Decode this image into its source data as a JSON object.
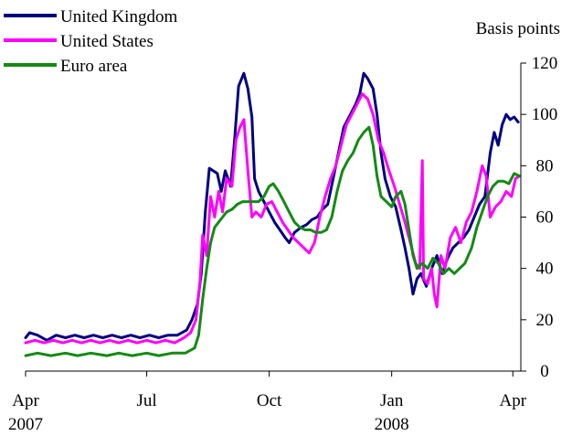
{
  "chart_data": {
    "type": "line",
    "ylabel": "Basis points",
    "ylim": [
      0,
      120
    ],
    "yticks": [
      0,
      20,
      40,
      60,
      80,
      100,
      120
    ],
    "x_range": [
      "2007-04-01",
      "2008-04-07"
    ],
    "x_ticks": [
      {
        "date": "2007-04-01",
        "label": "Apr",
        "year": "2007"
      },
      {
        "date": "2007-07-01",
        "label": "Jul",
        "year": ""
      },
      {
        "date": "2007-10-01",
        "label": "Oct",
        "year": ""
      },
      {
        "date": "2008-01-01",
        "label": "Jan",
        "year": "2008"
      },
      {
        "date": "2008-04-01",
        "label": "Apr",
        "year": ""
      }
    ],
    "grid": false,
    "legend": "top-left",
    "series": [
      {
        "name": "United Kingdom",
        "color": "#000080",
        "points": [
          [
            "2007-04-01",
            13
          ],
          [
            "2007-04-04",
            15
          ],
          [
            "2007-04-10",
            14
          ],
          [
            "2007-04-17",
            12
          ],
          [
            "2007-04-24",
            14
          ],
          [
            "2007-05-01",
            13
          ],
          [
            "2007-05-08",
            14
          ],
          [
            "2007-05-15",
            13
          ],
          [
            "2007-05-22",
            14
          ],
          [
            "2007-05-29",
            13
          ],
          [
            "2007-06-05",
            14
          ],
          [
            "2007-06-12",
            13
          ],
          [
            "2007-06-19",
            14
          ],
          [
            "2007-06-26",
            13
          ],
          [
            "2007-07-03",
            14
          ],
          [
            "2007-07-10",
            13
          ],
          [
            "2007-07-17",
            14
          ],
          [
            "2007-07-24",
            14
          ],
          [
            "2007-07-31",
            16
          ],
          [
            "2007-08-04",
            20
          ],
          [
            "2007-08-08",
            26
          ],
          [
            "2007-08-11",
            38
          ],
          [
            "2007-08-14",
            62
          ],
          [
            "2007-08-17",
            79
          ],
          [
            "2007-08-20",
            78
          ],
          [
            "2007-08-23",
            77
          ],
          [
            "2007-08-26",
            70
          ],
          [
            "2007-08-29",
            78
          ],
          [
            "2007-09-02",
            72
          ],
          [
            "2007-09-05",
            90
          ],
          [
            "2007-09-08",
            111
          ],
          [
            "2007-09-12",
            116
          ],
          [
            "2007-09-15",
            110
          ],
          [
            "2007-09-18",
            99
          ],
          [
            "2007-09-20",
            75
          ],
          [
            "2007-09-23",
            70
          ],
          [
            "2007-09-27",
            66
          ],
          [
            "2007-10-01",
            62
          ],
          [
            "2007-10-05",
            58
          ],
          [
            "2007-10-09",
            55
          ],
          [
            "2007-10-13",
            52
          ],
          [
            "2007-10-16",
            50
          ],
          [
            "2007-10-20",
            54
          ],
          [
            "2007-10-25",
            56
          ],
          [
            "2007-10-29",
            57
          ],
          [
            "2007-11-02",
            59
          ],
          [
            "2007-11-06",
            60
          ],
          [
            "2007-11-10",
            63
          ],
          [
            "2007-11-14",
            65
          ],
          [
            "2007-11-18",
            75
          ],
          [
            "2007-11-22",
            85
          ],
          [
            "2007-11-26",
            95
          ],
          [
            "2007-12-01",
            100
          ],
          [
            "2007-12-05",
            104
          ],
          [
            "2007-12-08",
            108
          ],
          [
            "2007-12-11",
            116
          ],
          [
            "2007-12-14",
            114
          ],
          [
            "2007-12-18",
            110
          ],
          [
            "2007-12-21",
            100
          ],
          [
            "2007-12-24",
            85
          ],
          [
            "2007-12-27",
            75
          ],
          [
            "2007-12-31",
            68
          ],
          [
            "2008-01-04",
            64
          ],
          [
            "2008-01-08",
            55
          ],
          [
            "2008-01-11",
            48
          ],
          [
            "2008-01-14",
            40
          ],
          [
            "2008-01-17",
            30
          ],
          [
            "2008-01-20",
            36
          ],
          [
            "2008-01-23",
            38
          ],
          [
            "2008-01-27",
            33
          ],
          [
            "2008-01-31",
            40
          ],
          [
            "2008-02-04",
            45
          ],
          [
            "2008-02-08",
            38
          ],
          [
            "2008-02-12",
            44
          ],
          [
            "2008-02-16",
            48
          ],
          [
            "2008-02-20",
            50
          ],
          [
            "2008-02-24",
            52
          ],
          [
            "2008-02-28",
            55
          ],
          [
            "2008-03-03",
            60
          ],
          [
            "2008-03-07",
            65
          ],
          [
            "2008-03-11",
            68
          ],
          [
            "2008-03-15",
            85
          ],
          [
            "2008-03-18",
            93
          ],
          [
            "2008-03-21",
            88
          ],
          [
            "2008-03-24",
            96
          ],
          [
            "2008-03-27",
            100
          ],
          [
            "2008-03-30",
            98
          ],
          [
            "2008-04-02",
            99
          ],
          [
            "2008-04-05",
            97
          ]
        ]
      },
      {
        "name": "United States",
        "color": "#ff00ff",
        "points": [
          [
            "2007-04-01",
            11
          ],
          [
            "2007-04-08",
            12
          ],
          [
            "2007-04-15",
            11
          ],
          [
            "2007-04-22",
            12
          ],
          [
            "2007-04-29",
            11
          ],
          [
            "2007-05-06",
            12
          ],
          [
            "2007-05-13",
            11
          ],
          [
            "2007-05-20",
            12
          ],
          [
            "2007-05-27",
            11
          ],
          [
            "2007-06-03",
            12
          ],
          [
            "2007-06-10",
            11
          ],
          [
            "2007-06-17",
            12
          ],
          [
            "2007-06-24",
            11
          ],
          [
            "2007-07-01",
            12
          ],
          [
            "2007-07-08",
            11
          ],
          [
            "2007-07-15",
            12
          ],
          [
            "2007-07-22",
            11
          ],
          [
            "2007-07-29",
            13
          ],
          [
            "2007-08-03",
            15
          ],
          [
            "2007-08-07",
            20
          ],
          [
            "2007-08-10",
            35
          ],
          [
            "2007-08-12",
            53
          ],
          [
            "2007-08-15",
            45
          ],
          [
            "2007-08-18",
            68
          ],
          [
            "2007-08-21",
            60
          ],
          [
            "2007-08-24",
            70
          ],
          [
            "2007-08-27",
            62
          ],
          [
            "2007-08-30",
            75
          ],
          [
            "2007-09-03",
            72
          ],
          [
            "2007-09-06",
            90
          ],
          [
            "2007-09-09",
            95
          ],
          [
            "2007-09-12",
            98
          ],
          [
            "2007-09-15",
            78
          ],
          [
            "2007-09-18",
            60
          ],
          [
            "2007-09-21",
            62
          ],
          [
            "2007-09-25",
            60
          ],
          [
            "2007-09-29",
            65
          ],
          [
            "2007-10-03",
            66
          ],
          [
            "2007-10-07",
            62
          ],
          [
            "2007-10-11",
            58
          ],
          [
            "2007-10-15",
            55
          ],
          [
            "2007-10-19",
            52
          ],
          [
            "2007-10-23",
            50
          ],
          [
            "2007-10-27",
            48
          ],
          [
            "2007-10-31",
            46
          ],
          [
            "2007-11-04",
            50
          ],
          [
            "2007-11-08",
            60
          ],
          [
            "2007-11-12",
            68
          ],
          [
            "2007-11-16",
            75
          ],
          [
            "2007-11-20",
            80
          ],
          [
            "2007-11-24",
            88
          ],
          [
            "2007-11-28",
            96
          ],
          [
            "2007-12-02",
            100
          ],
          [
            "2007-12-06",
            104
          ],
          [
            "2007-12-10",
            108
          ],
          [
            "2007-12-14",
            106
          ],
          [
            "2007-12-18",
            100
          ],
          [
            "2007-12-22",
            90
          ],
          [
            "2007-12-26",
            85
          ],
          [
            "2007-12-30",
            78
          ],
          [
            "2008-01-03",
            72
          ],
          [
            "2008-01-07",
            65
          ],
          [
            "2008-01-11",
            58
          ],
          [
            "2008-01-15",
            50
          ],
          [
            "2008-01-19",
            42
          ],
          [
            "2008-01-22",
            40
          ],
          [
            "2008-01-24",
            82
          ],
          [
            "2008-01-25",
            36
          ],
          [
            "2008-01-28",
            34
          ],
          [
            "2008-01-31",
            40
          ],
          [
            "2008-02-02",
            30
          ],
          [
            "2008-02-04",
            25
          ],
          [
            "2008-02-07",
            45
          ],
          [
            "2008-02-10",
            40
          ],
          [
            "2008-02-14",
            52
          ],
          [
            "2008-02-18",
            56
          ],
          [
            "2008-02-22",
            50
          ],
          [
            "2008-02-26",
            58
          ],
          [
            "2008-03-01",
            62
          ],
          [
            "2008-03-05",
            70
          ],
          [
            "2008-03-09",
            80
          ],
          [
            "2008-03-12",
            76
          ],
          [
            "2008-03-15",
            60
          ],
          [
            "2008-03-19",
            64
          ],
          [
            "2008-03-23",
            66
          ],
          [
            "2008-03-27",
            70
          ],
          [
            "2008-03-31",
            68
          ],
          [
            "2008-04-03",
            75
          ],
          [
            "2008-04-06",
            76
          ]
        ]
      },
      {
        "name": "Euro area",
        "color": "#138a13",
        "points": [
          [
            "2007-04-01",
            6
          ],
          [
            "2007-04-10",
            7
          ],
          [
            "2007-04-20",
            6
          ],
          [
            "2007-05-01",
            7
          ],
          [
            "2007-05-10",
            6
          ],
          [
            "2007-05-20",
            7
          ],
          [
            "2007-06-01",
            6
          ],
          [
            "2007-06-10",
            7
          ],
          [
            "2007-06-20",
            6
          ],
          [
            "2007-07-01",
            7
          ],
          [
            "2007-07-10",
            6
          ],
          [
            "2007-07-20",
            7
          ],
          [
            "2007-07-30",
            7
          ],
          [
            "2007-08-06",
            9
          ],
          [
            "2007-08-09",
            14
          ],
          [
            "2007-08-12",
            28
          ],
          [
            "2007-08-15",
            40
          ],
          [
            "2007-08-18",
            50
          ],
          [
            "2007-08-21",
            56
          ],
          [
            "2007-08-24",
            58
          ],
          [
            "2007-08-27",
            60
          ],
          [
            "2007-08-30",
            62
          ],
          [
            "2007-09-03",
            63
          ],
          [
            "2007-09-07",
            65
          ],
          [
            "2007-09-11",
            66
          ],
          [
            "2007-09-15",
            66
          ],
          [
            "2007-09-19",
            66
          ],
          [
            "2007-09-23",
            66
          ],
          [
            "2007-09-27",
            68
          ],
          [
            "2007-10-01",
            72
          ],
          [
            "2007-10-04",
            73
          ],
          [
            "2007-10-08",
            70
          ],
          [
            "2007-10-12",
            66
          ],
          [
            "2007-10-16",
            62
          ],
          [
            "2007-10-20",
            58
          ],
          [
            "2007-10-24",
            56
          ],
          [
            "2007-10-28",
            55
          ],
          [
            "2007-11-01",
            55
          ],
          [
            "2007-11-05",
            54
          ],
          [
            "2007-11-09",
            54
          ],
          [
            "2007-11-13",
            55
          ],
          [
            "2007-11-17",
            60
          ],
          [
            "2007-11-21",
            70
          ],
          [
            "2007-11-25",
            78
          ],
          [
            "2007-11-29",
            82
          ],
          [
            "2007-12-03",
            85
          ],
          [
            "2007-12-07",
            90
          ],
          [
            "2007-12-11",
            93
          ],
          [
            "2007-12-15",
            95
          ],
          [
            "2007-12-18",
            88
          ],
          [
            "2007-12-21",
            76
          ],
          [
            "2007-12-24",
            68
          ],
          [
            "2007-12-28",
            66
          ],
          [
            "2008-01-01",
            64
          ],
          [
            "2008-01-04",
            68
          ],
          [
            "2008-01-08",
            70
          ],
          [
            "2008-01-11",
            65
          ],
          [
            "2008-01-14",
            55
          ],
          [
            "2008-01-17",
            45
          ],
          [
            "2008-01-20",
            40
          ],
          [
            "2008-01-24",
            42
          ],
          [
            "2008-01-28",
            40
          ],
          [
            "2008-02-01",
            44
          ],
          [
            "2008-02-05",
            42
          ],
          [
            "2008-02-09",
            38
          ],
          [
            "2008-02-13",
            40
          ],
          [
            "2008-02-17",
            38
          ],
          [
            "2008-02-21",
            40
          ],
          [
            "2008-02-25",
            42
          ],
          [
            "2008-03-01",
            48
          ],
          [
            "2008-03-05",
            56
          ],
          [
            "2008-03-09",
            62
          ],
          [
            "2008-03-13",
            68
          ],
          [
            "2008-03-17",
            72
          ],
          [
            "2008-03-21",
            74
          ],
          [
            "2008-03-25",
            74
          ],
          [
            "2008-03-29",
            73
          ],
          [
            "2008-04-02",
            77
          ],
          [
            "2008-04-06",
            76
          ]
        ]
      }
    ]
  }
}
